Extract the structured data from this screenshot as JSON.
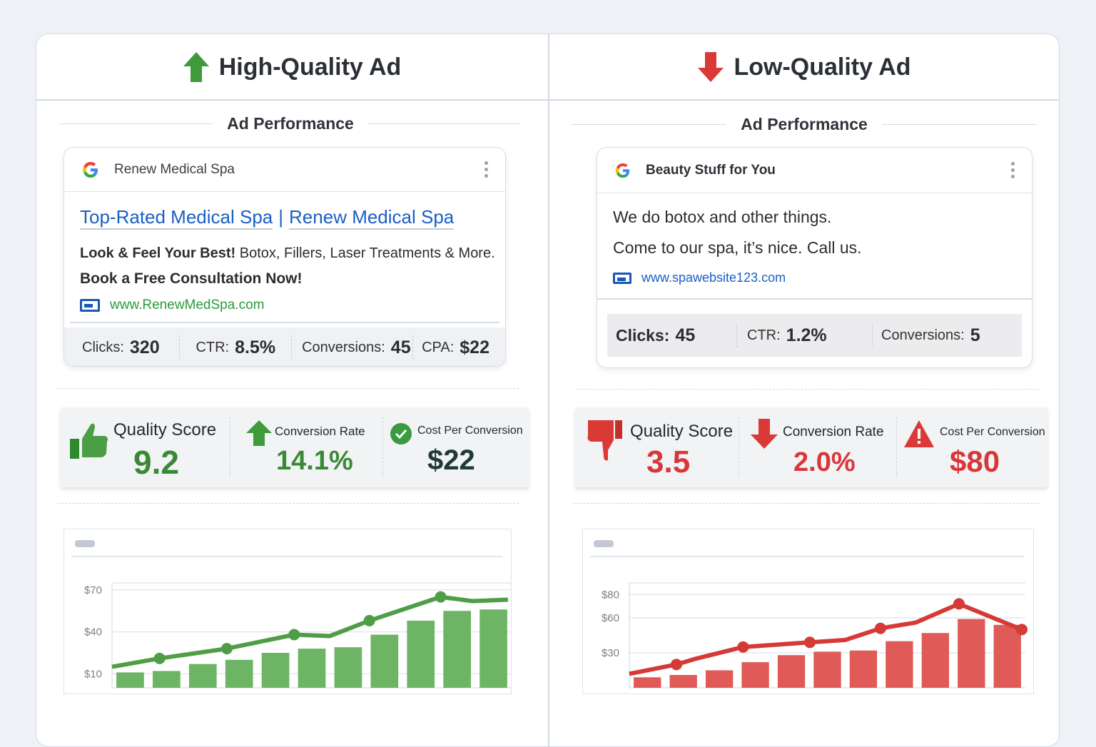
{
  "left": {
    "title": "High-Quality Ad",
    "section": "Ad Performance",
    "advertiser": "Renew Medical Spa",
    "headline_a": "Top-Rated Medical Spa",
    "headline_sep": "|",
    "headline_b": "Renew Medical Spa",
    "desc_bold": "Look & Feel Your Best!",
    "desc_rest": "Botox, Fillers, Laser Treatments & More.",
    "desc_line2": "Book a Free Consultation Now!",
    "url": "www.RenewMedSpa.com",
    "stats": [
      {
        "label": "Clicks:",
        "value": "320"
      },
      {
        "label": "CTR:",
        "value": "8.5%"
      },
      {
        "label": "Conversions:",
        "value": "45"
      },
      {
        "label": "CPA:",
        "value": "$22"
      }
    ],
    "kpis": [
      {
        "label": "Quality Score",
        "value": "9.2",
        "icon": "thumbs-up-icon"
      },
      {
        "label": "Conversion Rate",
        "value": "14.1%",
        "icon": "arrow-up-icon"
      },
      {
        "label": "Cost Per Conversion",
        "value": "$22",
        "icon": "check-circle-icon"
      }
    ],
    "colors": {
      "accent": "#3f9a3a",
      "value": "#3a8a35",
      "cpc": "#1f3b34"
    }
  },
  "right": {
    "title": "Low-Quality Ad",
    "section": "Ad Performance",
    "advertiser": "Beauty Stuff for You",
    "desc_line1": "We do botox and other things.",
    "desc_line2": "Come to our spa, it’s nice. Call us.",
    "url": "www.spawebsite123.com",
    "stats": [
      {
        "label": "Clicks:",
        "value": "45"
      },
      {
        "label": "CTR:",
        "value": "1.2%"
      },
      {
        "label": "Conversions:",
        "value": "5"
      }
    ],
    "kpis": [
      {
        "label": "Quality Score",
        "value": "3.5",
        "icon": "thumbs-down-icon"
      },
      {
        "label": "Conversion Rate",
        "value": "2.0%",
        "icon": "arrow-down-icon"
      },
      {
        "label": "Cost Per Conversion",
        "value": "$80",
        "icon": "warning-icon"
      }
    ],
    "colors": {
      "accent": "#d93a36",
      "value": "#d8373a"
    }
  },
  "chart_data": [
    {
      "type": "bar",
      "name": "high-quality-trend",
      "ylim": [
        0,
        75
      ],
      "yticks": [
        {
          "v": 10,
          "label": "$10"
        },
        {
          "v": 40,
          "label": "$40"
        },
        {
          "v": 70,
          "label": "$70"
        }
      ],
      "bars": [
        11,
        12,
        17,
        20,
        25,
        28,
        29,
        38,
        48,
        55,
        56
      ],
      "line": {
        "x": [
          0,
          1.2,
          2.9,
          4.6,
          5.5,
          6.5,
          8.3,
          9.1,
          10
        ],
        "y": [
          15,
          21,
          28,
          38,
          37,
          48,
          65,
          62,
          63
        ],
        "markers": [
          1,
          2,
          3,
          5,
          6
        ]
      },
      "color": "#4f9e47",
      "bar_color": "#6db565"
    },
    {
      "type": "bar",
      "name": "low-quality-trend",
      "ylim": [
        0,
        90
      ],
      "yticks": [
        {
          "v": 30,
          "label": "$30"
        },
        {
          "v": 60,
          "label": "$60"
        },
        {
          "v": 80,
          "label": "$80"
        }
      ],
      "bars": [
        9,
        11,
        15,
        22,
        28,
        31,
        32,
        40,
        47,
        59,
        54
      ],
      "line": {
        "x": [
          0,
          1.2,
          1.7,
          2.9,
          4.6,
          5.5,
          6.4,
          7.3,
          8.4,
          10
        ],
        "y": [
          12,
          20,
          25,
          35,
          39,
          41,
          51,
          56,
          72,
          50
        ],
        "markers": [
          1,
          3,
          4,
          6,
          8,
          9
        ]
      },
      "color": "#d63a36",
      "bar_color": "#e05b57"
    }
  ]
}
